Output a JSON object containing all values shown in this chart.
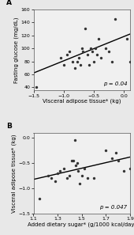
{
  "panel_A": {
    "label": "A",
    "scatter_x": [
      -1.45,
      -1.05,
      -1.0,
      -0.95,
      -0.9,
      -0.85,
      -0.82,
      -0.78,
      -0.75,
      -0.72,
      -0.7,
      -0.68,
      -0.65,
      -0.6,
      -0.58,
      -0.55,
      -0.52,
      -0.5,
      -0.48,
      -0.45,
      -0.42,
      -0.38,
      -0.3,
      -0.25,
      -0.2,
      -0.15,
      0.05,
      0.1
    ],
    "scatter_y": [
      40,
      85,
      75,
      90,
      95,
      80,
      70,
      80,
      85,
      75,
      100,
      95,
      130,
      90,
      75,
      100,
      95,
      80,
      100,
      90,
      115,
      85,
      100,
      95,
      80,
      145,
      115,
      80
    ],
    "trendline_x": [
      -1.5,
      0.1
    ],
    "trendline_y": [
      62,
      122
    ],
    "xlabel": "Visceral adipose tissue* (kg)",
    "ylabel": "Fasting glucose (mg/dL)",
    "xlim": [
      -1.5,
      0.1
    ],
    "ylim": [
      35,
      160
    ],
    "xticks": [
      -1.5,
      -1.0,
      -0.5,
      0.0
    ],
    "yticks": [
      40,
      60,
      80,
      100,
      120,
      140,
      160
    ],
    "ptext": "p = 0.04"
  },
  "panel_B": {
    "label": "B",
    "scatter_x": [
      1.15,
      1.22,
      1.25,
      1.28,
      1.3,
      1.32,
      1.35,
      1.38,
      1.4,
      1.42,
      1.43,
      1.44,
      1.45,
      1.46,
      1.47,
      1.48,
      1.5,
      1.52,
      1.55,
      1.6,
      1.7,
      1.75,
      1.78,
      1.8,
      1.85,
      1.9
    ],
    "scatter_y": [
      -1.2,
      -0.75,
      -0.8,
      -0.85,
      -0.7,
      -0.65,
      -0.6,
      -0.8,
      -0.75,
      -0.45,
      -0.45,
      -0.05,
      -0.55,
      -0.5,
      -0.65,
      -0.9,
      -0.75,
      -0.6,
      -0.8,
      -0.8,
      -0.25,
      -0.4,
      -0.3,
      -0.45,
      -0.65,
      -0.6
    ],
    "trendline_x": [
      1.1,
      1.9
    ],
    "trendline_y": [
      -0.82,
      -0.38
    ],
    "xlabel": "Added dietary sugar* (g/1000 kcal/day)",
    "ylabel": "Visceral adipose tissue* (kg)",
    "xlim": [
      1.1,
      1.9
    ],
    "ylim": [
      -1.5,
      0.1
    ],
    "xticks": [
      1.1,
      1.3,
      1.5,
      1.7,
      1.9
    ],
    "yticks": [
      -1.5,
      -1.0,
      -0.5,
      0.0
    ],
    "ptext": "p = 0.047"
  },
  "scatter_color": "#333333",
  "line_color": "#000000",
  "bg_color": "#e8e8e8",
  "plot_bg_color": "#f0f0f0",
  "marker_size": 6,
  "font_size_label": 5.0,
  "font_size_tick": 4.5,
  "font_size_panel": 6.5,
  "font_size_p": 5.0
}
